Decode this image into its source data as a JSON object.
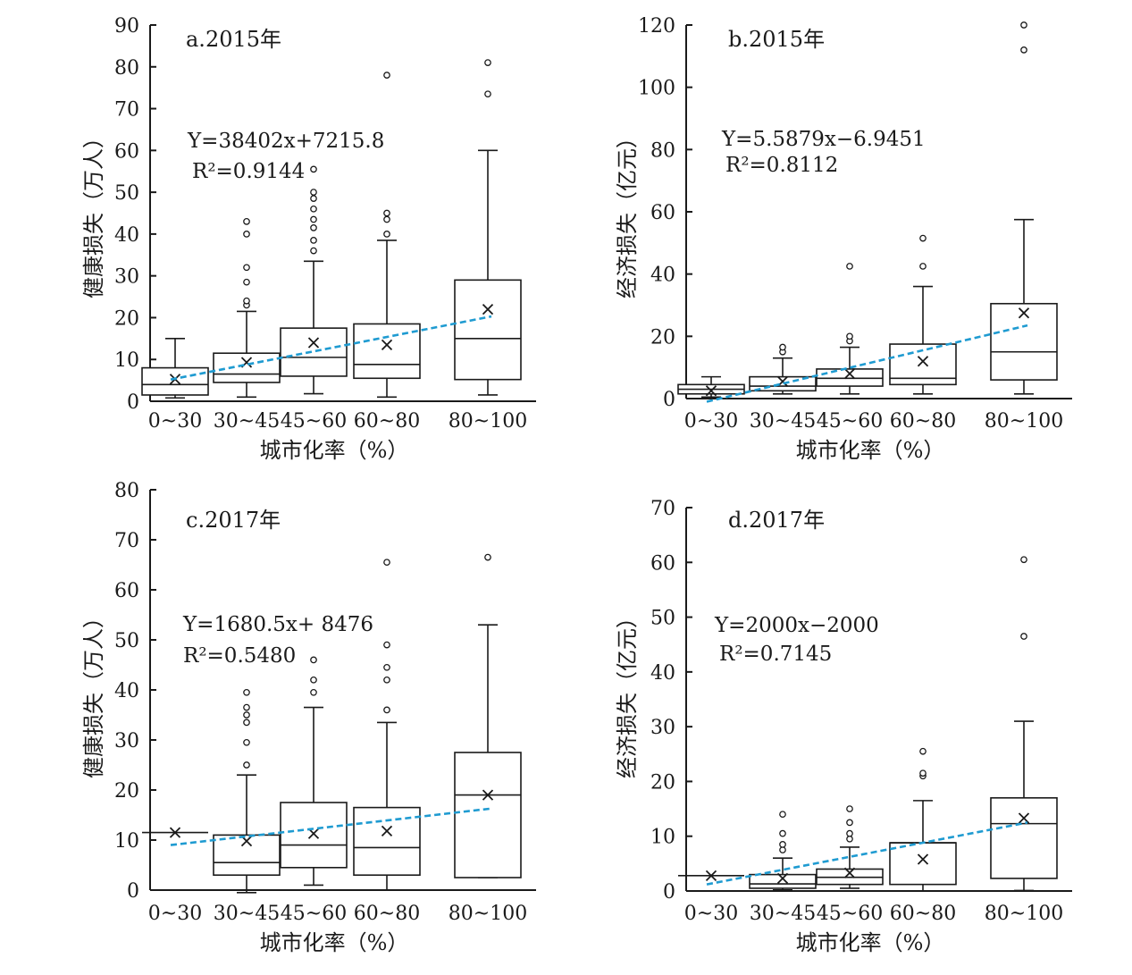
{
  "chart_data": [
    {
      "type": "box",
      "title": "a.2015年",
      "xlabel": "城市化率（%）",
      "ylabel": "健康损失（万人）",
      "ylim": [
        0,
        90
      ],
      "yticks": [
        0,
        10,
        20,
        30,
        40,
        50,
        60,
        70,
        80,
        90
      ],
      "categories": [
        "0~30",
        "30~45",
        "45~60",
        "60~80",
        "80~100"
      ],
      "boxes": [
        {
          "q1": 1.5,
          "median": 4,
          "q3": 8,
          "whisker_low": 0.8,
          "whisker_high": 15,
          "mean": 5.3,
          "outliers": []
        },
        {
          "q1": 4.5,
          "median": 6.5,
          "q3": 11.5,
          "whisker_low": 1,
          "whisker_high": 21.5,
          "mean": 9.3,
          "outliers": [
            23,
            24,
            28.5,
            32,
            40,
            43
          ]
        },
        {
          "q1": 6,
          "median": 10.5,
          "q3": 17.5,
          "whisker_low": 1.8,
          "whisker_high": 33.5,
          "mean": 14,
          "outliers": [
            36,
            38.5,
            41.5,
            43.5,
            46,
            48.5,
            50,
            55.5
          ]
        },
        {
          "q1": 5.5,
          "median": 8.8,
          "q3": 18.5,
          "whisker_low": 1,
          "whisker_high": 38.5,
          "mean": 13.5,
          "outliers": [
            40,
            43.5,
            45,
            78
          ]
        },
        {
          "q1": 5.2,
          "median": 15,
          "q3": 29,
          "whisker_low": 1.5,
          "whisker_high": 60,
          "mean": 22,
          "outliers": [
            73.5,
            81
          ]
        }
      ],
      "trend": {
        "y_start": 5.2,
        "y_end": 20.3
      },
      "equation": "Y=38402x+7215.8",
      "r2": "R²=0.9144"
    },
    {
      "type": "box",
      "title": "b.2015年",
      "xlabel": "城市化率（%）",
      "ylabel": "经济损失（亿元）",
      "ylim": [
        0,
        120
      ],
      "yticks": [
        0,
        20,
        40,
        60,
        80,
        100,
        120
      ],
      "categories": [
        "0~30",
        "30~45",
        "45~60",
        "60~80",
        "80~100"
      ],
      "boxes": [
        {
          "q1": 1.5,
          "median": 3,
          "q3": 4.5,
          "whisker_low": 0.5,
          "whisker_high": 7,
          "mean": 2.5,
          "outliers": []
        },
        {
          "q1": 2.5,
          "median": 4,
          "q3": 7,
          "whisker_low": 1.5,
          "whisker_high": 13,
          "mean": 5.5,
          "outliers": [
            15,
            16.5
          ]
        },
        {
          "q1": 4,
          "median": 6.5,
          "q3": 9.5,
          "whisker_low": 1.5,
          "whisker_high": 16.5,
          "mean": 8,
          "outliers": [
            18.5,
            20,
            42.5
          ]
        },
        {
          "q1": 4.5,
          "median": 6.5,
          "q3": 17.5,
          "whisker_low": 1.5,
          "whisker_high": 36,
          "mean": 12,
          "outliers": [
            42.5,
            51.5
          ]
        },
        {
          "q1": 6,
          "median": 15,
          "q3": 30.5,
          "whisker_low": 1.5,
          "whisker_high": 57.5,
          "mean": 27.5,
          "outliers": [
            112,
            120
          ]
        }
      ],
      "trend": {
        "y_start": -1,
        "y_end": 23.5
      },
      "equation": "Y=5.5879x−6.9451",
      "r2": "R²=0.8112"
    },
    {
      "type": "box",
      "title": "c.2017年",
      "xlabel": "城市化率（%）",
      "ylabel": "健康损失（万人）",
      "ylim": [
        0,
        80
      ],
      "yticks": [
        0,
        10,
        20,
        30,
        40,
        50,
        60,
        70,
        80
      ],
      "categories": [
        "0~30",
        "30~45",
        "45~60",
        "60~80",
        "80~100"
      ],
      "boxes": [
        {
          "q1": 11.5,
          "median": 11.5,
          "q3": 11.5,
          "whisker_low": 11.5,
          "whisker_high": 11.5,
          "mean": 11.5,
          "outliers": []
        },
        {
          "q1": 3,
          "median": 5.5,
          "q3": 11,
          "whisker_low": -0.5,
          "whisker_high": 23,
          "mean": 9.8,
          "outliers": [
            25,
            29.5,
            33.5,
            35,
            36.5,
            39.5
          ]
        },
        {
          "q1": 4.5,
          "median": 9,
          "q3": 17.5,
          "whisker_low": 1,
          "whisker_high": 36.5,
          "mean": 11.3,
          "outliers": [
            39.5,
            42,
            46
          ]
        },
        {
          "q1": 3,
          "median": 8.5,
          "q3": 16.5,
          "whisker_low": 0,
          "whisker_high": 33.5,
          "mean": 11.8,
          "outliers": [
            36,
            42,
            44.5,
            49,
            65.5
          ]
        },
        {
          "q1": 2.5,
          "median": 19,
          "q3": 27.5,
          "whisker_low": 2.5,
          "whisker_high": 53,
          "mean": 19,
          "outliers": [
            66.5
          ]
        }
      ],
      "trend": {
        "y_start": 9,
        "y_end": 16.3
      },
      "equation": "Y=1680.5x+ 8476",
      "r2": "R²=0.5480"
    },
    {
      "type": "box",
      "title": "d.2017年",
      "xlabel": "城市化率（%）",
      "ylabel": "经济损失（亿元）",
      "ylim": [
        0,
        70
      ],
      "yticks": [
        0,
        10,
        20,
        30,
        40,
        50,
        60,
        70
      ],
      "categories": [
        "0~30",
        "30~45",
        "45~60",
        "60~80",
        "80~100"
      ],
      "boxes": [
        {
          "q1": 2.8,
          "median": 2.8,
          "q3": 2.8,
          "whisker_low": 2.8,
          "whisker_high": 2.8,
          "mean": 2.8,
          "outliers": []
        },
        {
          "q1": 0.5,
          "median": 1.3,
          "q3": 3,
          "whisker_low": 0.2,
          "whisker_high": 6,
          "mean": 2.3,
          "outliers": [
            7.5,
            8.5,
            10.5,
            14
          ]
        },
        {
          "q1": 1.2,
          "median": 2.5,
          "q3": 4,
          "whisker_low": 0.5,
          "whisker_high": 8,
          "mean": 3.3,
          "outliers": [
            9.5,
            10.5,
            12.5,
            15
          ]
        },
        {
          "q1": 1.2,
          "median": 8.8,
          "q3": 8.8,
          "whisker_low": 0,
          "whisker_high": 16.5,
          "mean": 5.8,
          "outliers": [
            21,
            21.5,
            25.5
          ]
        },
        {
          "q1": 2.3,
          "median": 12.3,
          "q3": 17,
          "whisker_low": 0.1,
          "whisker_high": 31,
          "mean": 13.3,
          "outliers": [
            46.5,
            60.5
          ]
        }
      ],
      "trend": {
        "y_start": 1.2,
        "y_end": 12.5
      },
      "equation": "Y=2000x−2000",
      "r2": "R²=0.7145"
    }
  ]
}
